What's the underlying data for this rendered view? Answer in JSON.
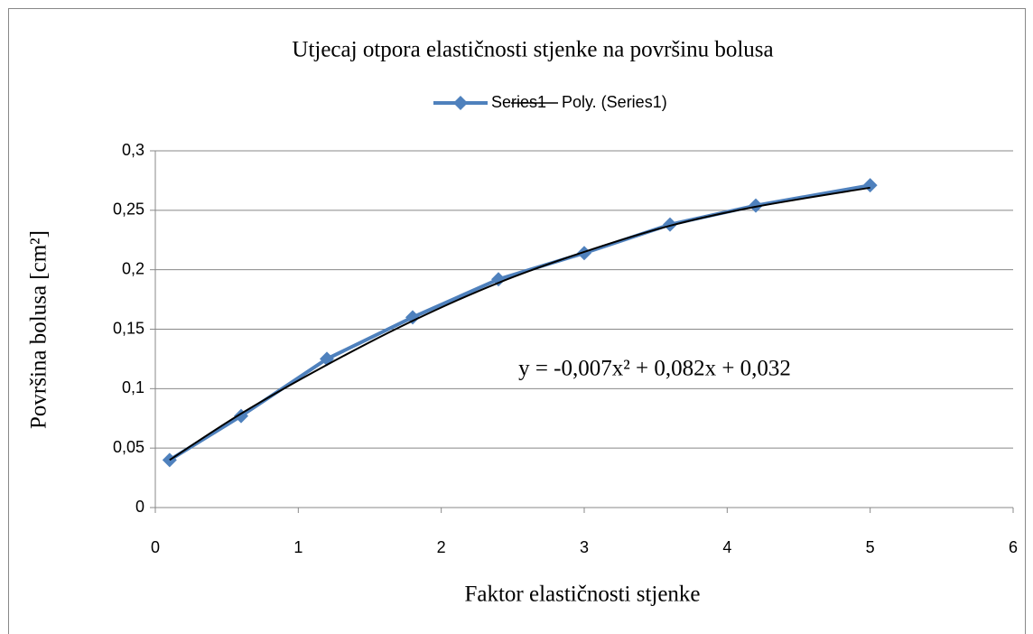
{
  "chart_data": {
    "type": "line",
    "title": "Utjecaj otpora elastičnosti stjenke na površinu bolusa",
    "x_label": "Faktor elastičnosti stjenke",
    "y_label": "Površina bolusa [cm²]",
    "annotation": "y = -0,007x² + 0,082x + 0,032",
    "x": [
      0.1,
      0.6,
      1.2,
      1.8,
      2.4,
      3.0,
      3.6,
      4.2,
      5.0
    ],
    "series": [
      {
        "name": "Series1",
        "color": "#4f81bd",
        "values": [
          0.04,
          0.077,
          0.125,
          0.16,
          0.192,
          0.214,
          0.238,
          0.254,
          0.271
        ]
      },
      {
        "name": "Poly. (Series1)",
        "color": "#000000",
        "values": [
          0.04,
          0.079,
          0.12,
          0.157,
          0.189,
          0.215,
          0.237,
          0.253,
          0.269
        ]
      }
    ],
    "xlim": [
      0,
      6
    ],
    "xticks": [
      0,
      1,
      2,
      3,
      4,
      5,
      6
    ],
    "ylim": [
      0,
      0.3
    ],
    "yticks": [
      0,
      {
        "value": 0.05,
        "label": "0,05"
      },
      {
        "value": 0.1,
        "label": "0,1"
      },
      {
        "value": 0.15,
        "label": "0,15"
      },
      {
        "value": 0.2,
        "label": "0,2"
      },
      {
        "value": 0.25,
        "label": "0,25"
      },
      {
        "value": 0.3,
        "label": "0,3"
      }
    ],
    "grid": true,
    "legend": "top"
  }
}
